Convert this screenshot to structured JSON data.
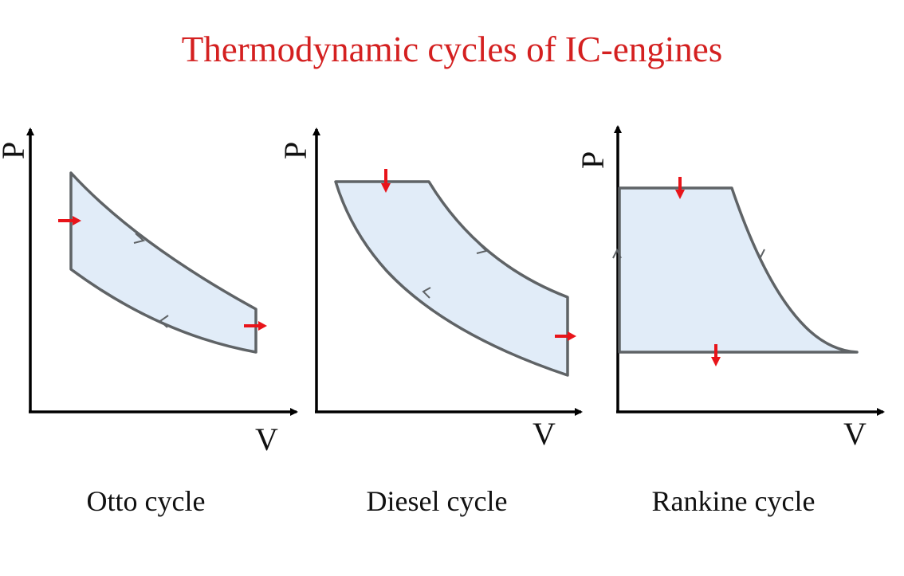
{
  "title": "Thermodynamic cycles of IC-engines",
  "colors": {
    "title": "#d42020",
    "fill": "#e1ecf8",
    "outline": "#5f6366",
    "heat_arrow": "#e8141a",
    "axis": "#000000"
  },
  "diagrams": [
    {
      "caption": "Otto cycle",
      "y_label": "P",
      "x_label": "V"
    },
    {
      "caption": "Diesel cycle",
      "y_label": "P",
      "x_label": "V"
    },
    {
      "caption": "Rankine cycle",
      "y_label": "P",
      "x_label": "V"
    }
  ]
}
